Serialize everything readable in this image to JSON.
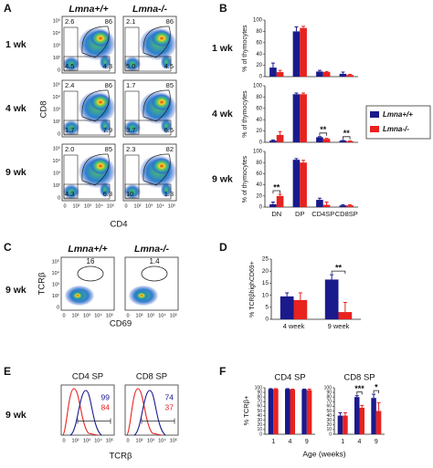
{
  "panels": {
    "A": {
      "label": "A",
      "columns": [
        "Lmna+/+",
        "Lmna-/-"
      ],
      "rows": [
        "1 wk",
        "4 wk",
        "9 wk"
      ],
      "values": [
        [
          [
            "2.6",
            "86",
            "4.5",
            "4.3"
          ],
          [
            "2.1",
            "86",
            "5.0",
            "4.5"
          ]
        ],
        [
          [
            "2.4",
            "86",
            "1.7",
            "7.9"
          ],
          [
            "1.7",
            "85",
            "3.7",
            "6.5"
          ]
        ],
        [
          [
            "2.0",
            "85",
            "4.3",
            "6.3"
          ],
          [
            "2.3",
            "82",
            "10",
            "1.3"
          ]
        ]
      ],
      "x_label": "CD4",
      "y_label": "CD8",
      "axis_ticks": [
        "0",
        "10²",
        "10³",
        "10⁴",
        "10⁵"
      ]
    },
    "C": {
      "label": "C",
      "columns": [
        "Lmna+/+",
        "Lmna-/-"
      ],
      "row": "9 wk",
      "values": [
        "16",
        "1.4"
      ],
      "x_label": "CD69",
      "y_label": "TCRβ",
      "axis_ticks": [
        "0",
        "10²",
        "10³",
        "10⁴",
        "10⁵"
      ]
    },
    "E": {
      "label": "E",
      "columns": [
        "CD4 SP",
        "CD8 SP"
      ],
      "row": "9 wk",
      "values": [
        [
          "99",
          "84"
        ],
        [
          "74",
          "37"
        ]
      ],
      "x_label": "TCRβ",
      "axis_ticks": [
        "0",
        "10²",
        "10³",
        "10⁴",
        "10⁵"
      ]
    }
  },
  "chart_data": [
    {
      "type": "bar",
      "panel": "B",
      "y_label": "% of thymocytes",
      "categories": [
        "DN",
        "DP",
        "CD4SP",
        "CD8SP"
      ],
      "legend": [
        {
          "name": "Lmna+/+",
          "color": "#1a1a8c"
        },
        {
          "name": "Lmna-/-",
          "color": "#e8221f"
        }
      ],
      "ylim": [
        0,
        100
      ],
      "yticks": [
        0,
        20,
        40,
        60,
        80,
        100
      ],
      "rows": [
        {
          "label": "1 wk",
          "series": [
            {
              "values": [
                16,
                80,
                9,
                5
              ],
              "errors": [
                8,
                8,
                2,
                3
              ]
            },
            {
              "values": [
                8,
                86,
                8,
                3
              ],
              "errors": [
                3,
                3,
                1,
                1
              ]
            }
          ],
          "annotations": []
        },
        {
          "label": "4 wk",
          "series": [
            {
              "values": [
                3,
                85,
                9,
                3
              ],
              "errors": [
                1,
                2,
                1,
                0.5
              ]
            },
            {
              "values": [
                13,
                85,
                6,
                2
              ],
              "errors": [
                6,
                2,
                1,
                0.5
              ]
            }
          ],
          "annotations": [
            {
              "text": "**",
              "category": "CD4SP"
            },
            {
              "text": "**",
              "category": "CD8SP"
            }
          ]
        },
        {
          "label": "9 wk",
          "series": [
            {
              "values": [
                5,
                85,
                13,
                3
              ],
              "errors": [
                4,
                2,
                3,
                1
              ]
            },
            {
              "values": [
                20,
                80,
                4,
                3
              ],
              "errors": [
                3,
                4,
                5,
                1
              ]
            }
          ],
          "annotations": [
            {
              "text": "**",
              "category": "DN"
            }
          ]
        }
      ]
    },
    {
      "type": "bar",
      "panel": "D",
      "y_label": "% TCRβhighCD69+",
      "categories": [
        "4 week",
        "9 week"
      ],
      "ylim": [
        0,
        25
      ],
      "yticks": [
        0,
        5,
        10,
        15,
        20,
        25
      ],
      "series": [
        {
          "color": "#1a1a8c",
          "values": [
            9.5,
            16.5
          ],
          "errors": [
            1.5,
            2
          ]
        },
        {
          "color": "#e8221f",
          "values": [
            8,
            3
          ],
          "errors": [
            3,
            4
          ]
        }
      ],
      "annotations": [
        {
          "text": "**",
          "category": "9 week"
        }
      ]
    },
    {
      "type": "bar",
      "panel": "F",
      "y_label": "% TCRβ+",
      "x_label": "Age (weeks)",
      "categories": [
        "1",
        "4",
        "9"
      ],
      "ylim": [
        0,
        100
      ],
      "yticks": [
        0,
        10,
        20,
        30,
        40,
        50,
        60,
        70,
        80,
        90,
        100
      ],
      "plots": [
        {
          "title": "CD4 SP",
          "series": [
            {
              "color": "#1a1a8c",
              "values": [
                97,
                97,
                96
              ],
              "errors": [
                1,
                1,
                1
              ]
            },
            {
              "color": "#e8221f",
              "values": [
                97,
                96,
                95
              ],
              "errors": [
                1,
                1,
                2
              ]
            }
          ],
          "annotations": []
        },
        {
          "title": "CD8 SP",
          "series": [
            {
              "color": "#1a1a8c",
              "values": [
                40,
                80,
                78
              ],
              "errors": [
                6,
                3,
                8
              ]
            },
            {
              "color": "#e8221f",
              "values": [
                40,
                57,
                50
              ],
              "errors": [
                6,
                5,
                18
              ]
            }
          ],
          "annotations": [
            {
              "text": "***",
              "category": "4"
            },
            {
              "text": "*",
              "category": "9"
            }
          ]
        }
      ]
    }
  ]
}
